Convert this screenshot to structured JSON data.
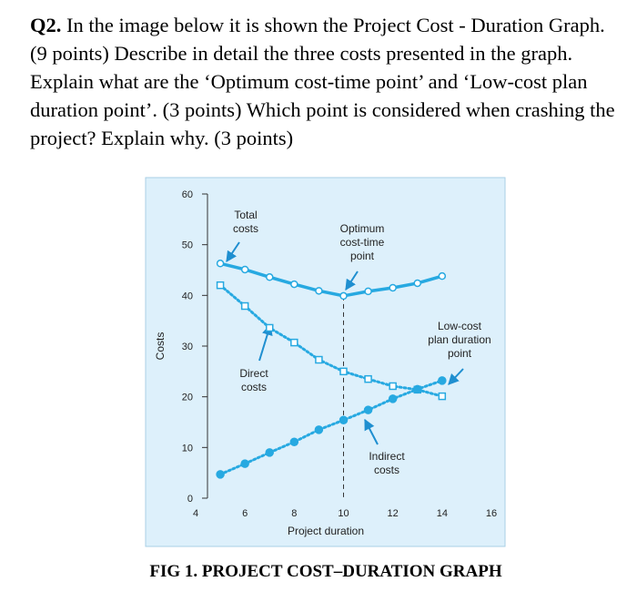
{
  "question": {
    "label": "Q2.",
    "text": "In the image below it is shown the Project Cost - Duration Graph. (9 points) Describe in detail the three costs presented in the graph. Explain what are the ‘Optimum cost-time point’ and ‘Low-cost plan duration point’. (3 points) Which point is considered when crashing the project? Explain why. (3 points)"
  },
  "caption": "FIG 1. PROJECT COST–DURATION GRAPH",
  "chart_data": {
    "type": "line",
    "x_label": "Project duration",
    "y_label": "Costs",
    "x": [
      5,
      6,
      7,
      8,
      9,
      10,
      11,
      12,
      13,
      14
    ],
    "xlim": [
      4,
      16
    ],
    "xticks": [
      4,
      6,
      8,
      10,
      12,
      14,
      16
    ],
    "ylim": [
      0,
      60
    ],
    "yticks": [
      0,
      10,
      20,
      30,
      40,
      50,
      60
    ],
    "series": [
      {
        "color": "#27a9e1",
        "marker": "open-circle",
        "dash": false,
        "values": [
          46.3,
          45.1,
          43.6,
          42.2,
          40.9,
          39.9,
          40.8,
          41.5,
          42.4,
          43.8
        ]
      },
      {
        "color": "#27a9e1",
        "marker": "open-square",
        "dash": true,
        "values": [
          42,
          37.9,
          33.6,
          30.7,
          27.3,
          25,
          23.5,
          22.1,
          21.4,
          20.1
        ]
      },
      {
        "color": "#27a9e1",
        "marker": "filled-circle",
        "dash": true,
        "values": [
          4.7,
          6.8,
          9,
          11.1,
          13.5,
          15.4,
          17.4,
          19.6,
          21.5,
          23.2
        ]
      }
    ],
    "annotations": [
      {
        "lines": [
          "Total",
          "costs"
        ]
      },
      {
        "lines": [
          "Optimum",
          "cost-time",
          "point"
        ]
      },
      {
        "lines": [
          "Low-cost",
          "plan duration",
          "point"
        ]
      },
      {
        "lines": [
          "Direct",
          "costs"
        ]
      },
      {
        "lines": [
          "Indirect",
          "costs"
        ]
      }
    ]
  }
}
